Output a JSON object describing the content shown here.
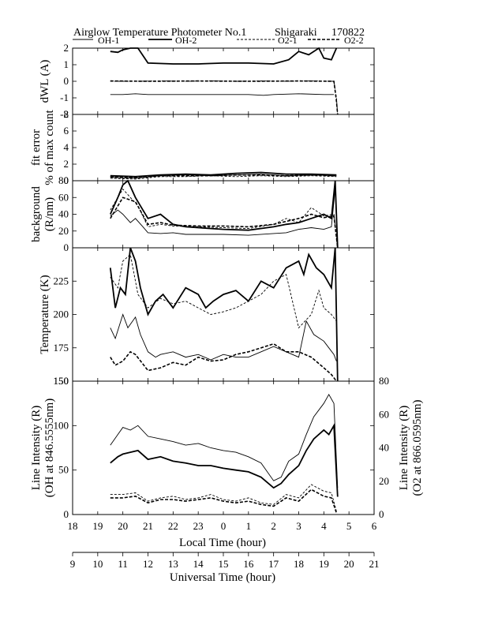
{
  "title": "Airglow Temperature Photometer No.1",
  "station": "Shigaraki",
  "date_code": "170822",
  "legend": [
    {
      "label": "OH-1",
      "style": "thin-solid"
    },
    {
      "label": "OH-2",
      "style": "thick-solid"
    },
    {
      "label": "O2-1",
      "style": "thin-dashed"
    },
    {
      "label": "O2-2",
      "style": "thick-dashed"
    }
  ],
  "chart_data": [
    {
      "type": "line",
      "panel": "dwl",
      "ylabel": "dWL (A)",
      "ylim": [
        -2,
        2
      ],
      "yticks": [
        "2",
        "1",
        "0",
        "-1",
        "-2"
      ],
      "x_unit": "local time (hour, 18-30)",
      "series": [
        {
          "name": "OH-1",
          "style": "thin-solid",
          "x": [
            19.5,
            20.0,
            20.5,
            21.0,
            22.0,
            23.0,
            24.0,
            25.0,
            25.6,
            26.0,
            27.0,
            28.0,
            28.4
          ],
          "y": [
            -0.8,
            -0.8,
            -0.75,
            -0.8,
            -0.8,
            -0.8,
            -0.8,
            -0.8,
            -0.85,
            -0.8,
            -0.75,
            -0.8,
            -0.8
          ]
        },
        {
          "name": "OH-2",
          "style": "thick-solid",
          "x": [
            19.5,
            19.8,
            20.0,
            20.3,
            20.6,
            21.0,
            22.0,
            23.0,
            24.0,
            25.0,
            26.0,
            26.6,
            27.0,
            27.4,
            27.8,
            28.0,
            28.3,
            28.5
          ],
          "y": [
            1.8,
            1.75,
            1.9,
            2.0,
            2.0,
            1.1,
            1.05,
            1.05,
            1.1,
            1.1,
            1.05,
            1.3,
            1.8,
            1.6,
            2.0,
            1.4,
            1.3,
            2.0
          ]
        },
        {
          "name": "O2-1",
          "style": "thin-dashed",
          "x": [
            19.5,
            20.5,
            21.5,
            22.5,
            23.5,
            24.5,
            25.5,
            26.5,
            27.5,
            28.4,
            28.5,
            28.55
          ],
          "y": [
            0.0,
            0.0,
            0.02,
            0.0,
            0.02,
            0.0,
            0.02,
            0.0,
            0.02,
            0.0,
            -1.0,
            -2.0
          ]
        },
        {
          "name": "O2-2",
          "style": "thick-dashed",
          "x": [
            19.5,
            21.0,
            23.0,
            25.0,
            27.0,
            28.4,
            28.5,
            28.55
          ],
          "y": [
            0.02,
            0.0,
            0.02,
            0.0,
            0.02,
            0.0,
            -1.2,
            -2.0
          ]
        }
      ]
    },
    {
      "type": "line",
      "panel": "fit_error",
      "ylabel": "fit error",
      "ylabel2": "% of max count",
      "ylim": [
        0,
        8
      ],
      "yticks": [
        "8",
        "6",
        "4",
        "2",
        "0"
      ],
      "series": [
        {
          "name": "OH-1",
          "style": "thin-solid",
          "x": [
            19.5,
            20.5,
            21.5,
            22.5,
            23.5,
            24.5,
            25.5,
            26.5,
            27.5,
            28.5
          ],
          "y": [
            0.4,
            0.3,
            0.6,
            0.7,
            0.6,
            0.7,
            0.8,
            0.6,
            0.7,
            0.6
          ]
        },
        {
          "name": "OH-2",
          "style": "thick-solid",
          "x": [
            19.5,
            20.5,
            21.5,
            22.5,
            23.5,
            24.5,
            25.5,
            26.5,
            27.5,
            28.5
          ],
          "y": [
            0.6,
            0.5,
            0.7,
            0.8,
            0.7,
            0.9,
            1.0,
            0.8,
            0.8,
            0.7
          ]
        },
        {
          "name": "O2-1",
          "style": "thin-dashed",
          "x": [
            19.5,
            20.5,
            21.5,
            22.5,
            23.5,
            24.5,
            25.5,
            26.5,
            27.5,
            28.5
          ],
          "y": [
            0.3,
            0.2,
            0.5,
            0.5,
            0.6,
            0.5,
            0.6,
            0.5,
            0.6,
            0.5
          ]
        },
        {
          "name": "O2-2",
          "style": "thick-dashed",
          "x": [
            19.5,
            20.5,
            21.5,
            22.5,
            23.5,
            24.5,
            25.5,
            26.5,
            27.5,
            28.5
          ],
          "y": [
            0.5,
            0.4,
            0.6,
            0.6,
            0.6,
            0.7,
            0.7,
            0.6,
            0.7,
            0.6
          ]
        }
      ]
    },
    {
      "type": "line",
      "panel": "background",
      "ylabel": "background",
      "ylabel2": "(R/nm)",
      "ylim": [
        0,
        80
      ],
      "yticks": [
        "80",
        "60",
        "40",
        "20",
        "0"
      ],
      "series": [
        {
          "name": "OH-1",
          "style": "thin-solid",
          "x": [
            19.5,
            19.8,
            20.0,
            20.3,
            20.5,
            20.8,
            21.0,
            21.5,
            22.0,
            22.5,
            23.0,
            24.0,
            25.0,
            26.0,
            26.5,
            27.0,
            27.5,
            28.0,
            28.3,
            28.45,
            28.55
          ],
          "y": [
            38,
            45,
            40,
            30,
            35,
            25,
            18,
            17,
            18,
            16,
            16,
            16,
            15,
            17,
            18,
            22,
            24,
            22,
            25,
            70,
            0
          ]
        },
        {
          "name": "OH-2",
          "style": "thick-solid",
          "x": [
            19.5,
            19.8,
            20.0,
            20.2,
            20.5,
            20.8,
            21.0,
            21.5,
            22.0,
            22.5,
            23.0,
            24.0,
            25.0,
            26.0,
            26.5,
            27.0,
            27.5,
            28.0,
            28.3,
            28.45,
            28.55
          ],
          "y": [
            40,
            60,
            75,
            80,
            60,
            45,
            35,
            40,
            28,
            25,
            24,
            22,
            21,
            25,
            28,
            30,
            35,
            40,
            35,
            80,
            0
          ]
        },
        {
          "name": "O2-1",
          "style": "thin-dashed",
          "x": [
            19.5,
            20.0,
            20.3,
            20.6,
            21.0,
            21.5,
            22.0,
            23.0,
            24.0,
            25.0,
            26.0,
            26.5,
            27.0,
            27.5,
            28.0,
            28.4,
            28.55
          ],
          "y": [
            45,
            70,
            60,
            50,
            25,
            28,
            26,
            25,
            24,
            23,
            28,
            35,
            30,
            48,
            38,
            40,
            0
          ]
        },
        {
          "name": "O2-2",
          "style": "thick-dashed",
          "x": [
            19.5,
            20.0,
            20.5,
            21.0,
            21.5,
            22.0,
            23.0,
            24.0,
            25.0,
            26.0,
            27.0,
            27.5,
            28.0,
            28.4,
            28.55
          ],
          "y": [
            35,
            60,
            55,
            28,
            30,
            27,
            26,
            26,
            25,
            28,
            35,
            40,
            36,
            38,
            0
          ]
        }
      ]
    },
    {
      "type": "line",
      "panel": "temperature",
      "ylabel": "Temperature (K)",
      "ylim": [
        150,
        250
      ],
      "yticks": [
        "225",
        "200",
        "175",
        "150"
      ],
      "series": [
        {
          "name": "OH-1",
          "style": "thin-solid",
          "x": [
            19.5,
            19.7,
            20.0,
            20.2,
            20.5,
            20.7,
            21.0,
            21.3,
            21.5,
            22.0,
            22.5,
            23.0,
            23.5,
            24.0,
            24.5,
            25.0,
            25.5,
            26.0,
            26.5,
            27.0,
            27.3,
            27.6,
            28.0,
            28.2,
            28.4,
            28.5
          ],
          "y": [
            190,
            182,
            200,
            190,
            198,
            185,
            172,
            168,
            170,
            172,
            168,
            170,
            166,
            170,
            168,
            168,
            172,
            176,
            172,
            168,
            195,
            185,
            180,
            175,
            170,
            165
          ]
        },
        {
          "name": "OH-2",
          "style": "thick-solid",
          "x": [
            19.5,
            19.7,
            19.9,
            20.1,
            20.3,
            20.5,
            20.7,
            21.0,
            21.3,
            21.6,
            22.0,
            22.5,
            23.0,
            23.3,
            23.6,
            24.0,
            24.5,
            25.0,
            25.5,
            26.0,
            26.5,
            27.0,
            27.2,
            27.4,
            27.7,
            28.0,
            28.3,
            28.45,
            28.55
          ],
          "y": [
            235,
            205,
            220,
            215,
            250,
            240,
            220,
            200,
            210,
            215,
            205,
            220,
            215,
            205,
            210,
            215,
            218,
            210,
            225,
            220,
            235,
            240,
            230,
            245,
            235,
            230,
            220,
            250,
            150
          ]
        },
        {
          "name": "O2-1",
          "style": "thin-dashed",
          "x": [
            19.5,
            19.8,
            20.0,
            20.3,
            20.6,
            21.0,
            21.5,
            22.0,
            22.5,
            23.0,
            23.5,
            24.0,
            24.5,
            25.0,
            25.5,
            26.0,
            26.5,
            27.0,
            27.5,
            27.8,
            28.0,
            28.3,
            28.5
          ],
          "y": [
            228,
            220,
            240,
            245,
            215,
            205,
            212,
            208,
            210,
            205,
            200,
            202,
            205,
            210,
            215,
            225,
            230,
            190,
            200,
            218,
            205,
            200,
            195
          ]
        },
        {
          "name": "O2-2",
          "style": "thick-dashed",
          "x": [
            19.5,
            19.7,
            20.0,
            20.3,
            20.5,
            21.0,
            21.5,
            22.0,
            22.5,
            23.0,
            23.5,
            24.0,
            24.5,
            25.0,
            25.5,
            26.0,
            26.5,
            27.0,
            27.5,
            28.0,
            28.3,
            28.5
          ],
          "y": [
            168,
            162,
            165,
            172,
            170,
            158,
            160,
            164,
            162,
            168,
            165,
            166,
            170,
            172,
            175,
            178,
            172,
            172,
            168,
            160,
            155,
            150
          ]
        }
      ]
    },
    {
      "type": "line",
      "panel": "intensity",
      "ylabel": "Line Intensity (R)",
      "ylabel2": "(OH at 846.5555nm)",
      "ylim": [
        0,
        150
      ],
      "yticks": [
        "150",
        "100",
        "50",
        "0"
      ],
      "ylabel_right": "Line Intensity (R)",
      "ylabel_right2": "(O2 at 866.0595nm)",
      "ylim_right": [
        0,
        80
      ],
      "yticks_right": [
        "80",
        "60",
        "40",
        "20",
        "0"
      ],
      "series": [
        {
          "name": "OH-1",
          "style": "thin-solid",
          "axis": "left",
          "x": [
            19.5,
            19.8,
            20.0,
            20.3,
            20.6,
            21.0,
            21.5,
            22.0,
            22.5,
            23.0,
            23.5,
            24.0,
            24.5,
            25.0,
            25.5,
            26.0,
            26.3,
            26.6,
            27.0,
            27.3,
            27.6,
            28.0,
            28.2,
            28.4,
            28.55
          ],
          "y": [
            78,
            90,
            98,
            95,
            100,
            88,
            85,
            82,
            78,
            80,
            75,
            72,
            70,
            65,
            58,
            38,
            42,
            60,
            68,
            90,
            110,
            125,
            135,
            125,
            30
          ]
        },
        {
          "name": "OH-2",
          "style": "thick-solid",
          "axis": "left",
          "x": [
            19.5,
            19.8,
            20.0,
            20.3,
            20.6,
            21.0,
            21.5,
            22.0,
            22.5,
            23.0,
            23.5,
            24.0,
            24.5,
            25.0,
            25.5,
            26.0,
            26.3,
            26.6,
            27.0,
            27.3,
            27.6,
            28.0,
            28.2,
            28.4,
            28.55
          ],
          "y": [
            58,
            65,
            68,
            70,
            72,
            62,
            65,
            60,
            58,
            55,
            55,
            52,
            50,
            48,
            42,
            30,
            35,
            45,
            55,
            72,
            85,
            95,
            90,
            100,
            20
          ]
        },
        {
          "name": "O2-1",
          "style": "thin-dashed",
          "axis": "right",
          "x": [
            19.5,
            20.0,
            20.5,
            21.0,
            21.5,
            22.0,
            22.5,
            23.0,
            23.5,
            24.0,
            24.5,
            25.0,
            25.5,
            26.0,
            26.5,
            27.0,
            27.5,
            28.0,
            28.3,
            28.5
          ],
          "y": [
            12,
            12,
            13,
            8,
            10,
            11,
            9,
            10,
            12,
            9,
            8,
            10,
            7,
            6,
            12,
            10,
            18,
            14,
            13,
            2
          ]
        },
        {
          "name": "O2-2",
          "style": "thick-dashed",
          "axis": "right",
          "x": [
            19.5,
            20.0,
            20.5,
            21.0,
            21.5,
            22.0,
            22.5,
            23.0,
            23.5,
            24.0,
            24.5,
            25.0,
            25.5,
            26.0,
            26.5,
            27.0,
            27.5,
            28.0,
            28.3,
            28.5
          ],
          "y": [
            10,
            10,
            11,
            7,
            9,
            9,
            8,
            9,
            10,
            8,
            7,
            8,
            6,
            5,
            10,
            8,
            15,
            11,
            10,
            1
          ]
        }
      ]
    }
  ],
  "xaxis_local": {
    "label": "Local Time (hour)",
    "ticks": [
      "18",
      "19",
      "20",
      "21",
      "22",
      "23",
      "0",
      "1",
      "2",
      "3",
      "4",
      "5",
      "6"
    ]
  },
  "xaxis_ut": {
    "label": "Universal Time (hour)",
    "ticks": [
      "9",
      "10",
      "11",
      "12",
      "13",
      "14",
      "15",
      "16",
      "17",
      "18",
      "19",
      "20",
      "21"
    ]
  }
}
